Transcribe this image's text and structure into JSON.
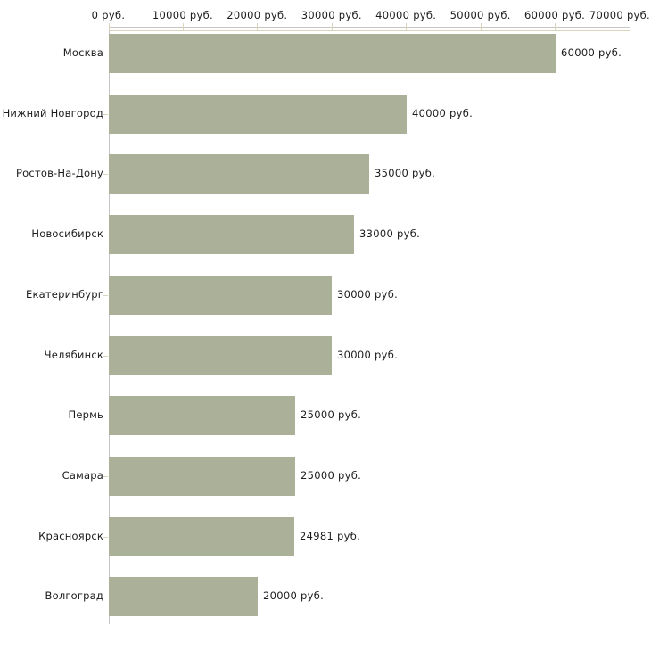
{
  "chart_data": {
    "type": "bar",
    "orientation": "horizontal",
    "title": "",
    "categories": [
      "Москва",
      "Нижний Новгород",
      "Ростов-На-Дону",
      "Новосибирск",
      "Екатеринбург",
      "Челябинск",
      "Пермь",
      "Самара",
      "Красноярск",
      "Волгоград"
    ],
    "values": [
      60000,
      40000,
      35000,
      33000,
      30000,
      30000,
      25000,
      25000,
      24981,
      20000
    ],
    "value_labels": [
      "60000 руб.",
      "40000 руб.",
      "35000 руб.",
      "33000 руб.",
      "30000 руб.",
      "30000 руб.",
      "25000 руб.",
      "25000 руб.",
      "24981 руб.",
      "20000 руб."
    ],
    "x_ticks": [
      0,
      10000,
      20000,
      30000,
      40000,
      50000,
      60000,
      70000
    ],
    "x_tick_labels": [
      "0 руб.",
      "10000 руб.",
      "20000 руб.",
      "30000 руб.",
      "40000 руб.",
      "50000 руб.",
      "60000 руб.",
      "70000 руб."
    ],
    "xlim": [
      0,
      70000
    ],
    "xlabel": "",
    "ylabel": "",
    "grid": false,
    "legend_position": "none",
    "x_axis_position": "top",
    "colors": {
      "bar": "#abb199",
      "axis_line": "#c6c6c6",
      "tick": "#d8d5bb",
      "text": "#1c1c1c",
      "background": "#ffffff"
    }
  }
}
